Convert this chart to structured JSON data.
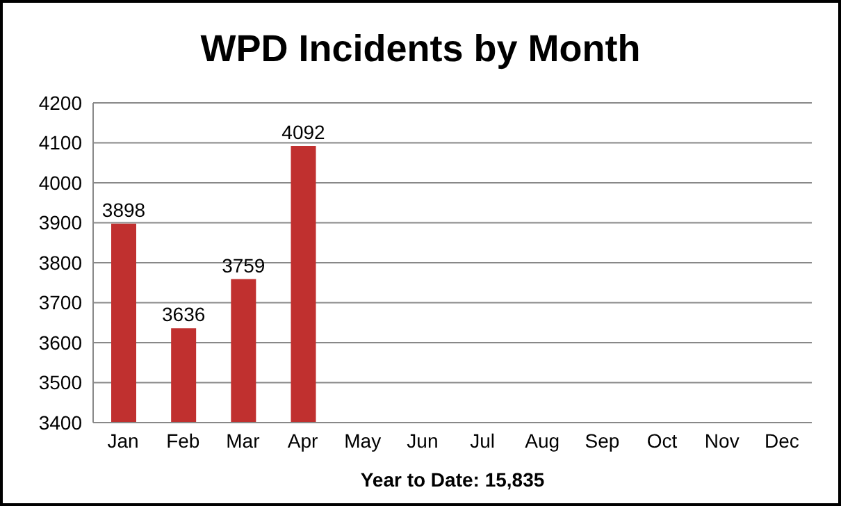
{
  "chart_data": {
    "type": "bar",
    "title": "WPD Incidents by Month",
    "xlabel": "Year to Date: 15,835",
    "categories": [
      "Jan",
      "Feb",
      "Mar",
      "Apr",
      "May",
      "Jun",
      "Jul",
      "Aug",
      "Sep",
      "Oct",
      "Nov",
      "Dec"
    ],
    "values": [
      3898,
      3636,
      3759,
      4092,
      null,
      null,
      null,
      null,
      null,
      null,
      null,
      null
    ],
    "color": "#c0302f",
    "ylim": [
      3400,
      4200
    ],
    "yticks": [
      3400,
      3500,
      3600,
      3700,
      3800,
      3900,
      4000,
      4100,
      4200
    ],
    "grid": "y",
    "data_labels": true
  }
}
